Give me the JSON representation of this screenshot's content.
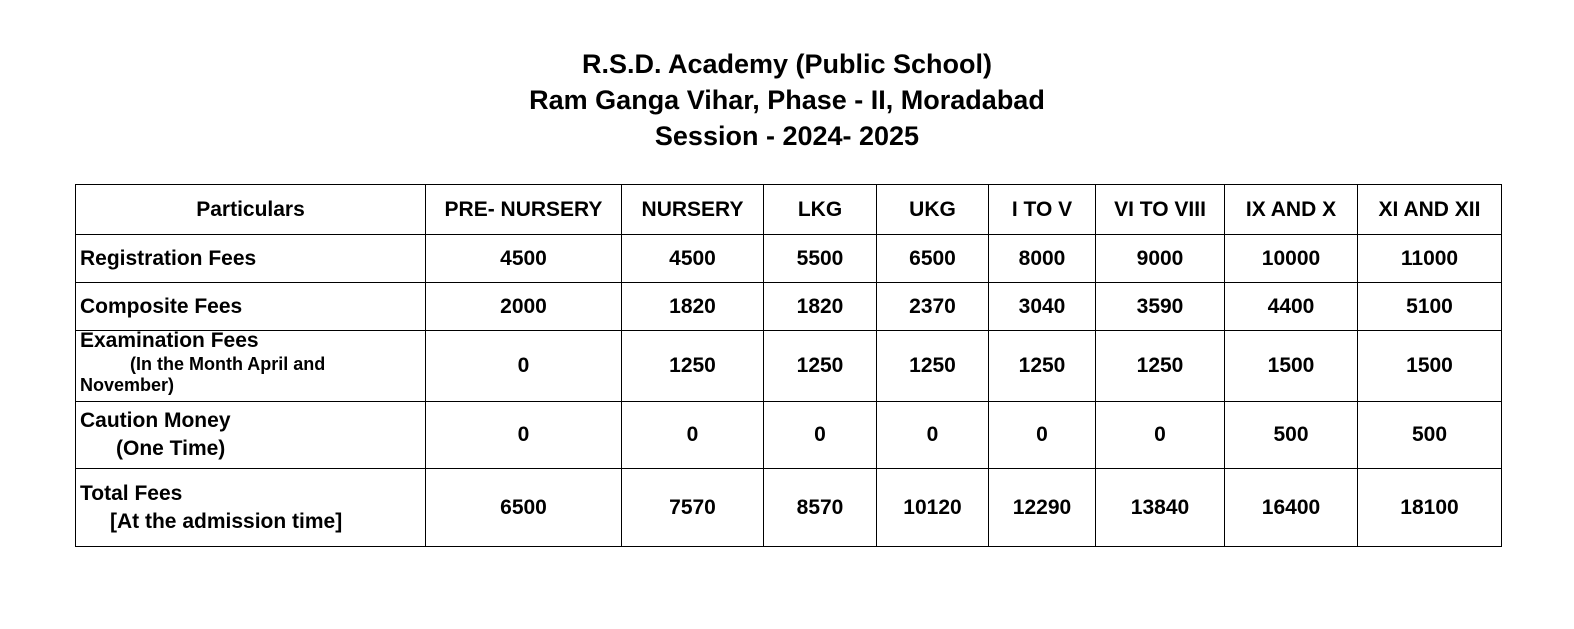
{
  "header": {
    "line1": "R.S.D. Academy (Public School)",
    "line2": "Ram Ganga Vihar, Phase - II, Moradabad",
    "line3": "Session - 2024- 2025"
  },
  "table": {
    "columns": [
      "Particulars",
      "PRE- NURSERY",
      "NURSERY",
      "LKG",
      "UKG",
      "I TO V",
      "VI TO VIII",
      "IX AND X",
      "XI AND XII"
    ],
    "rows": [
      {
        "label": "Registration Fees",
        "values": [
          "4500",
          "4500",
          "5500",
          "6500",
          "8000",
          "9000",
          "10000",
          "11000"
        ]
      },
      {
        "label": "Composite Fees",
        "values": [
          "2000",
          "1820",
          "1820",
          "2370",
          "3040",
          "3590",
          "4400",
          "5100"
        ]
      },
      {
        "label": "Examination Fees",
        "note_line1": "(In the Month April and",
        "note_line2": "November)",
        "values": [
          "0",
          "1250",
          "1250",
          "1250",
          "1250",
          "1250",
          "1500",
          "1500"
        ]
      },
      {
        "label": "Caution Money",
        "note": "(One Time)",
        "values": [
          "0",
          "0",
          "0",
          "0",
          "0",
          "0",
          "500",
          "500"
        ]
      },
      {
        "label": "Total Fees",
        "note": "[At the admission time]",
        "values": [
          "6500",
          "7570",
          "8570",
          "10120",
          "12290",
          "13840",
          "16400",
          "18100"
        ]
      }
    ]
  }
}
